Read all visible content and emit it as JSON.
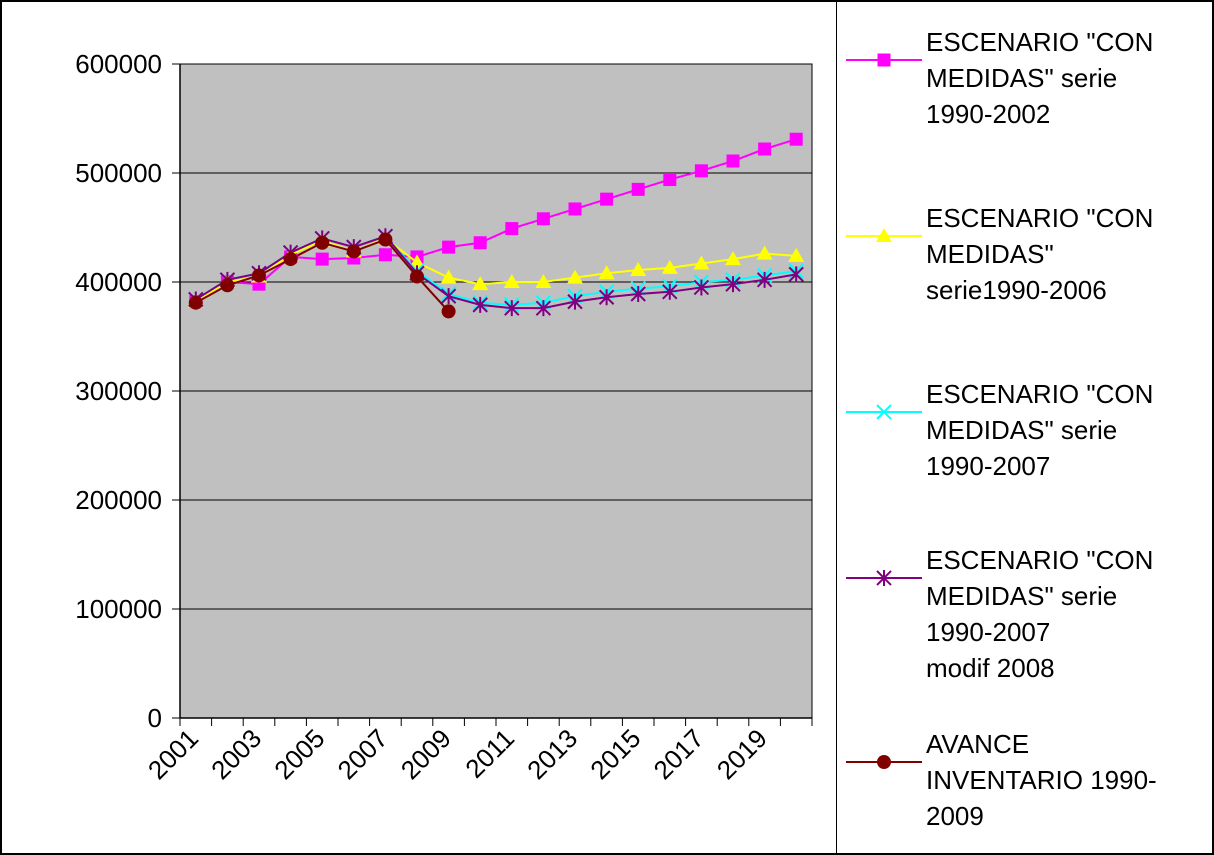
{
  "chart_data": {
    "type": "line",
    "title": "",
    "xlabel": "",
    "ylabel": "",
    "ylim": [
      0,
      600000
    ],
    "yticks": [
      "0",
      "100000",
      "200000",
      "300000",
      "400000",
      "500000",
      "600000"
    ],
    "x": [
      2001,
      2002,
      2003,
      2004,
      2005,
      2006,
      2007,
      2008,
      2009,
      2010,
      2011,
      2012,
      2013,
      2014,
      2015,
      2016,
      2017,
      2018,
      2019,
      2020
    ],
    "xticks": [
      "2001",
      "2003",
      "2005",
      "2007",
      "2009",
      "2011",
      "2013",
      "2015",
      "2017",
      "2019"
    ],
    "grid": true,
    "legend": "right",
    "plot_background": "#c0c0c0",
    "series": [
      {
        "label_lines": [
          "ESCENARIO \"CON",
          "MEDIDAS\" serie",
          "1990-2002"
        ],
        "color": "#ff00ff",
        "marker": "square",
        "values": [
          382000,
          400000,
          398000,
          423000,
          421000,
          422000,
          425000,
          423000,
          432000,
          436000,
          449000,
          458000,
          467000,
          476000,
          485000,
          494000,
          502000,
          511000,
          522000,
          531000
        ]
      },
      {
        "label_lines": [
          "ESCENARIO \"CON",
          "MEDIDAS\"",
          "serie1990-2006"
        ],
        "color": "#ffff00",
        "marker": "triangle",
        "values": [
          382000,
          400000,
          405000,
          425000,
          438000,
          428000,
          440000,
          418000,
          404000,
          398000,
          400000,
          400000,
          404000,
          408000,
          411000,
          413000,
          417000,
          421000,
          426000,
          424000
        ]
      },
      {
        "label_lines": [
          "ESCENARIO \"CON",
          "MEDIDAS\" serie",
          "1990-2007"
        ],
        "color": "#00ffff",
        "marker": "x",
        "values": [
          384000,
          402000,
          408000,
          427000,
          440000,
          432000,
          442000,
          410000,
          389000,
          381000,
          379000,
          381000,
          387000,
          391000,
          394000,
          396000,
          400000,
          402000,
          406000,
          410000
        ]
      },
      {
        "label_lines": [
          "ESCENARIO \"CON",
          "MEDIDAS\" serie",
          "1990-2007",
          "modif 2008"
        ],
        "color": "#800080",
        "marker": "star",
        "values": [
          384000,
          402000,
          408000,
          427000,
          440000,
          432000,
          442000,
          408000,
          387000,
          379000,
          376000,
          376000,
          382000,
          386000,
          389000,
          391000,
          395000,
          398000,
          402000,
          407000
        ]
      },
      {
        "label_lines": [
          "AVANCE",
          "INVENTARIO 1990-",
          "2009"
        ],
        "color": "#800000",
        "marker": "circle",
        "values": [
          381000,
          397000,
          406000,
          421000,
          436000,
          428000,
          439000,
          405000,
          373000,
          null,
          null,
          null,
          null,
          null,
          null,
          null,
          null,
          null,
          null,
          null
        ]
      }
    ]
  }
}
